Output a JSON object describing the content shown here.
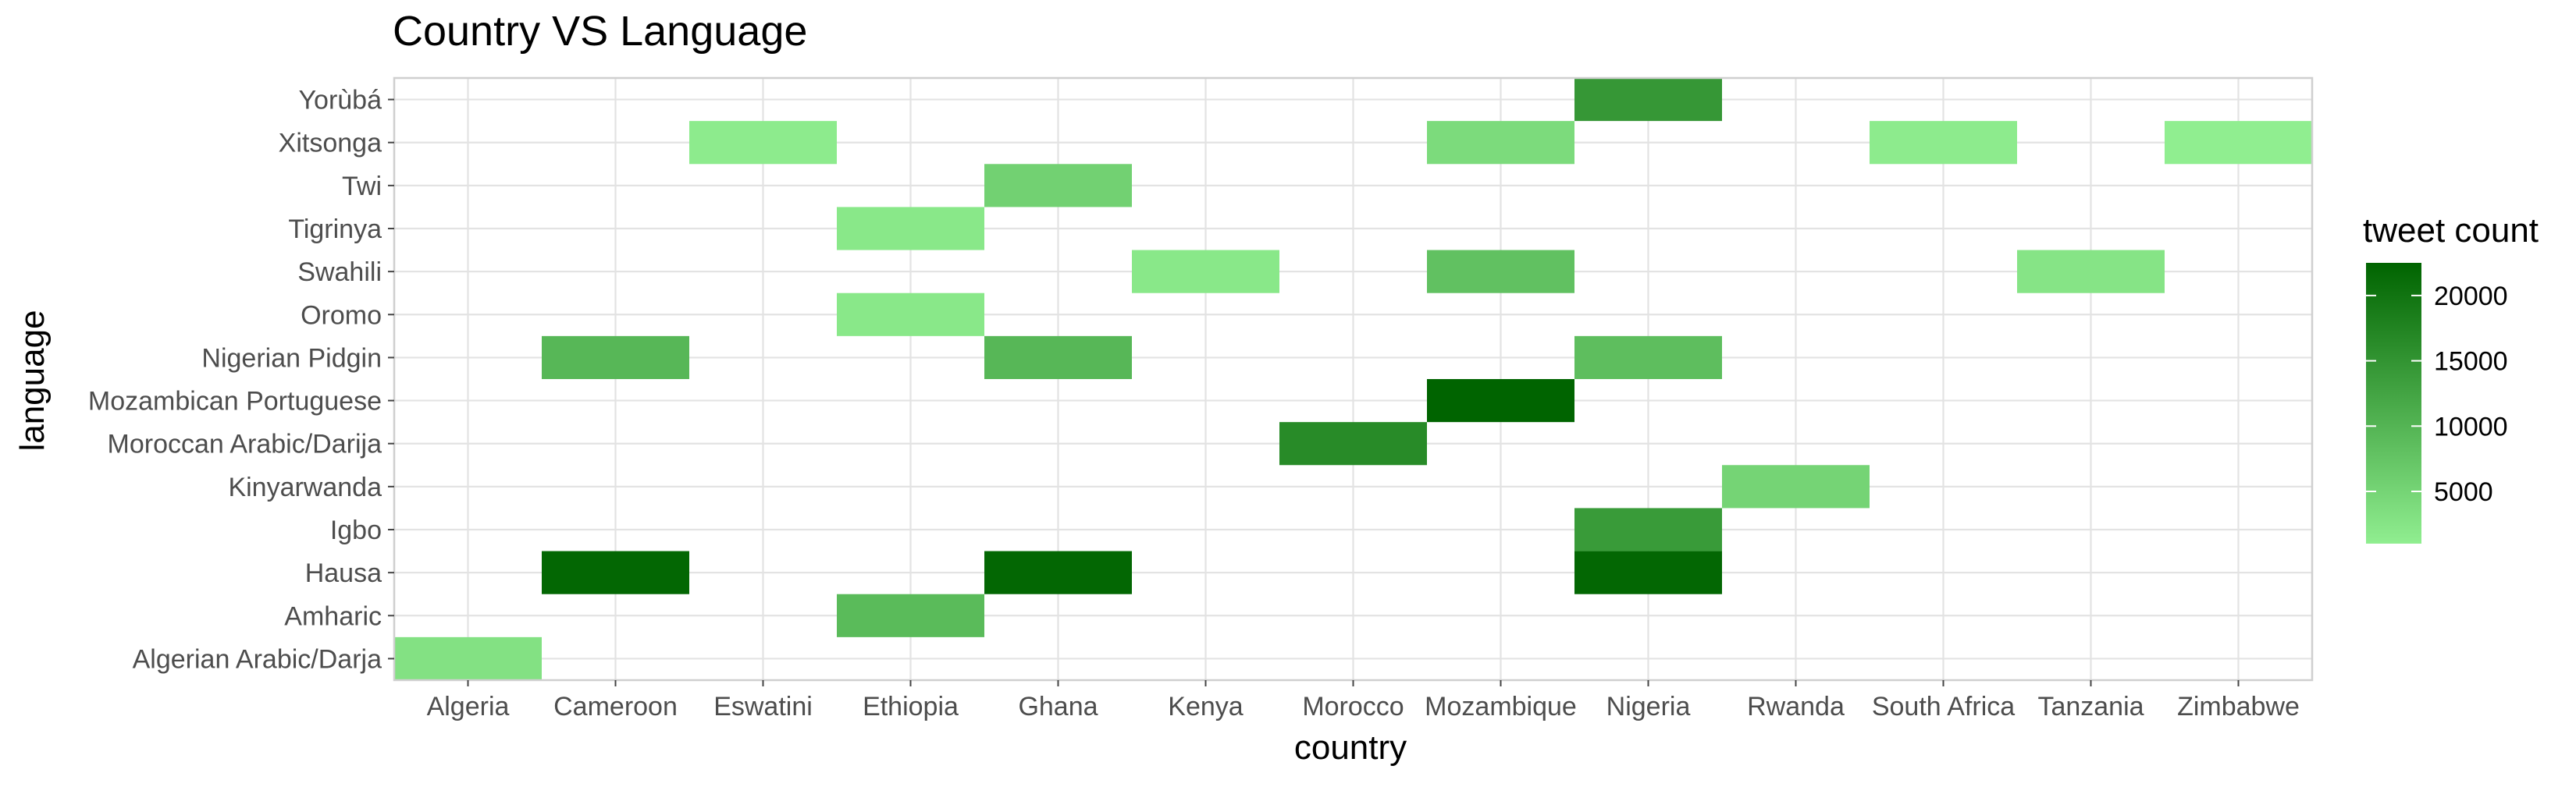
{
  "chart_data": {
    "type": "heatmap",
    "title": "Country VS Language",
    "xlabel": "country",
    "ylabel": "language",
    "x_categories": [
      "Algeria",
      "Cameroon",
      "Eswatini",
      "Ethiopia",
      "Ghana",
      "Kenya",
      "Morocco",
      "Mozambique",
      "Nigeria",
      "Rwanda",
      "South Africa",
      "Tanzania",
      "Zimbabwe"
    ],
    "y_categories": [
      "Algerian Arabic/Darja",
      "Amharic",
      "Hausa",
      "Igbo",
      "Kinyarwanda",
      "Moroccan Arabic/Darija",
      "Mozambican Portuguese",
      "Nigerian Pidgin",
      "Oromo",
      "Swahili",
      "Tigrinya",
      "Twi",
      "Xitsonga",
      "Yorùbá"
    ],
    "cells": [
      {
        "country": "Algeria",
        "language": "Algerian Arabic/Darja",
        "value": 3000
      },
      {
        "country": "Cameroon",
        "language": "Hausa",
        "value": 22000
      },
      {
        "country": "Cameroon",
        "language": "Nigerian Pidgin",
        "value": 9500
      },
      {
        "country": "Eswatini",
        "language": "Xitsonga",
        "value": 1500
      },
      {
        "country": "Ethiopia",
        "language": "Amharic",
        "value": 9000
      },
      {
        "country": "Ethiopia",
        "language": "Oromo",
        "value": 2000
      },
      {
        "country": "Ethiopia",
        "language": "Tigrinya",
        "value": 2000
      },
      {
        "country": "Ghana",
        "language": "Hausa",
        "value": 22000
      },
      {
        "country": "Ghana",
        "language": "Nigerian Pidgin",
        "value": 9500
      },
      {
        "country": "Ghana",
        "language": "Twi",
        "value": 5500
      },
      {
        "country": "Kenya",
        "language": "Swahili",
        "value": 2000
      },
      {
        "country": "Morocco",
        "language": "Moroccan Arabic/Darija",
        "value": 16500
      },
      {
        "country": "Mozambique",
        "language": "Mozambican Portuguese",
        "value": 22500
      },
      {
        "country": "Mozambique",
        "language": "Swahili",
        "value": 8000
      },
      {
        "country": "Mozambique",
        "language": "Xitsonga",
        "value": 4000
      },
      {
        "country": "Nigeria",
        "language": "Hausa",
        "value": 22000
      },
      {
        "country": "Nigeria",
        "language": "Igbo",
        "value": 14000
      },
      {
        "country": "Nigeria",
        "language": "Nigerian Pidgin",
        "value": 8500
      },
      {
        "country": "Nigeria",
        "language": "Yorùbá",
        "value": 14500
      },
      {
        "country": "Rwanda",
        "language": "Kinyarwanda",
        "value": 5000
      },
      {
        "country": "South Africa",
        "language": "Xitsonga",
        "value": 1500
      },
      {
        "country": "Tanzania",
        "language": "Swahili",
        "value": 2500
      },
      {
        "country": "Zimbabwe",
        "language": "Xitsonga",
        "value": 1000
      }
    ],
    "color_scale": {
      "title": "tweet count",
      "low_color": "#90EE90",
      "high_color": "#006400",
      "min": 1000,
      "max": 22500,
      "ticks": [
        5000,
        10000,
        15000,
        20000
      ]
    },
    "grid": true,
    "legend_position": "right"
  }
}
